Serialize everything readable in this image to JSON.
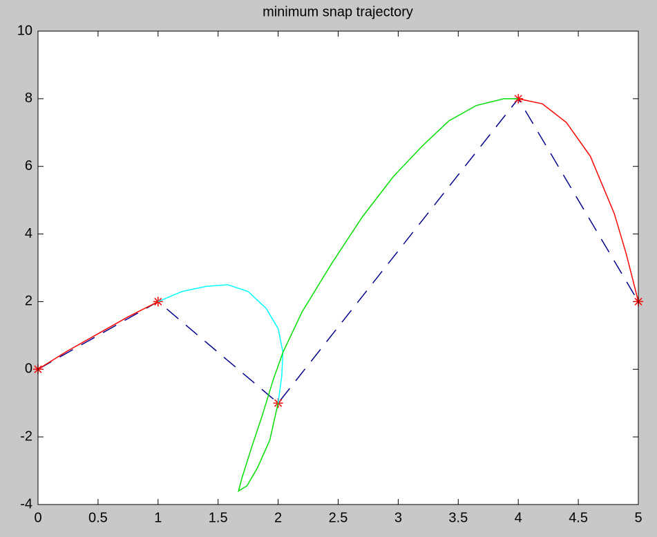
{
  "chart_data": {
    "type": "line",
    "title": "minimum snap trajectory",
    "xlim": [
      0,
      5
    ],
    "xticks": [
      0,
      0.5,
      1,
      1.5,
      2,
      2.5,
      3,
      3.5,
      4,
      4.5,
      5
    ],
    "ylim": [
      -4,
      10
    ],
    "yticks": [
      -4,
      -2,
      0,
      2,
      4,
      6,
      8,
      10
    ],
    "grid": false,
    "series": [
      {
        "color": "#00008b",
        "dash": true,
        "marker": "*",
        "marker_color": "#ff0000",
        "x": [
          0,
          1,
          2,
          4,
          5
        ],
        "values": [
          0,
          2,
          -1,
          8,
          2
        ]
      },
      {
        "color": "#ff0000",
        "x": [
          0,
          0.25,
          0.5,
          0.75,
          1
        ],
        "values": [
          0,
          0.55,
          1.05,
          1.55,
          2
        ]
      },
      {
        "color": "#00ffff",
        "x": [
          1,
          1.2,
          1.4,
          1.58,
          1.75,
          1.9,
          2.0,
          2.04,
          2.03,
          2.0
        ],
        "values": [
          2,
          2.3,
          2.45,
          2.5,
          2.3,
          1.8,
          1.2,
          0.5,
          -0.2,
          -1
        ]
      },
      {
        "color": "#00e000",
        "x": [
          2,
          1.93,
          1.83,
          1.74,
          1.67,
          1.7,
          1.78,
          1.87,
          1.96,
          2.04,
          2.2,
          2.45,
          2.7,
          2.96,
          3.2,
          3.42,
          3.65,
          3.88,
          4
        ],
        "values": [
          -1,
          -2.1,
          -2.9,
          -3.45,
          -3.6,
          -3.2,
          -2.3,
          -1.34,
          -0.3,
          0.5,
          1.7,
          3.15,
          4.5,
          5.7,
          6.6,
          7.34,
          7.8,
          8.0,
          8
        ]
      },
      {
        "color": "#ff0000",
        "x": [
          4,
          4.2,
          4.4,
          4.6,
          4.8,
          4.9,
          5
        ],
        "values": [
          8,
          7.85,
          7.3,
          6.3,
          4.6,
          3.4,
          2
        ]
      }
    ]
  }
}
